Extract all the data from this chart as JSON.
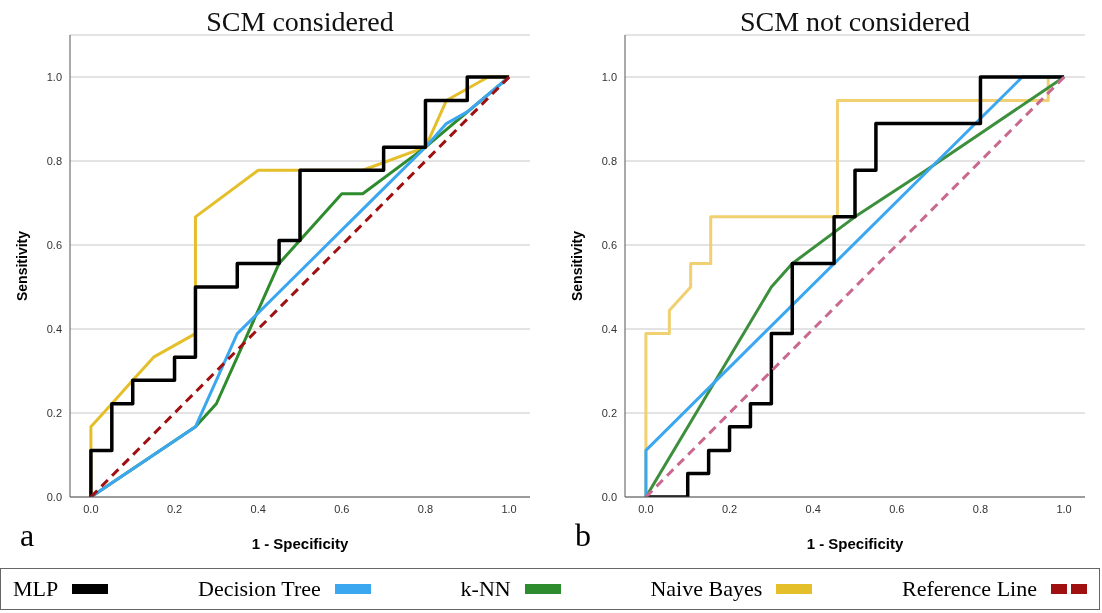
{
  "chart_data": [
    {
      "type": "line",
      "title": "SCM considered",
      "xlabel": "1 - Specificity",
      "ylabel": "Sensitivity",
      "annotations": [
        "a"
      ],
      "xlim": [
        -0.05,
        1.05
      ],
      "ylim": [
        0,
        1.1
      ],
      "xticks": [
        {
          "value": 0,
          "label": "0.0"
        },
        {
          "value": 0.2,
          "label": "0.2"
        },
        {
          "value": 0.4,
          "label": "0.4"
        },
        {
          "value": 0.6,
          "label": "0.6"
        },
        {
          "value": 0.8,
          "label": "0.8"
        },
        {
          "value": 1,
          "label": "1.0"
        }
      ],
      "yticks": [
        {
          "value": 0,
          "label": "0.0"
        },
        {
          "value": 0.2,
          "label": "0.2"
        },
        {
          "value": 0.4,
          "label": "0.4"
        },
        {
          "value": 0.6,
          "label": "0.6"
        },
        {
          "value": 0.8,
          "label": "0.8"
        },
        {
          "value": 1,
          "label": "1.0"
        }
      ],
      "grid": "y",
      "marker": "none",
      "legend": "bottom",
      "series": [
        {
          "name": "MLP",
          "color": "#000000",
          "x": [
            0,
            0,
            0.05,
            0.05,
            0.1,
            0.1,
            0.2,
            0.2,
            0.25,
            0.25,
            0.35,
            0.35,
            0.45,
            0.45,
            0.5,
            0.5,
            0.7,
            0.7,
            0.8,
            0.8,
            0.9,
            0.9,
            1
          ],
          "values": [
            0,
            0.111,
            0.111,
            0.222,
            0.222,
            0.278,
            0.278,
            0.333,
            0.333,
            0.5,
            0.5,
            0.556,
            0.556,
            0.611,
            0.611,
            0.778,
            0.778,
            0.833,
            0.833,
            0.944,
            0.944,
            1,
            1
          ]
        },
        {
          "name": "Decision Tree",
          "color": "#3aa7f0",
          "x": [
            0,
            0.25,
            0.35,
            0.8,
            0.85,
            0.9,
            1
          ],
          "values": [
            0,
            0.167,
            0.389,
            0.833,
            0.889,
            0.917,
            1
          ]
        },
        {
          "name": "k-NN",
          "color": "#2e8b2e",
          "x": [
            0,
            0.25,
            0.3,
            0.35,
            0.45,
            0.6,
            0.65,
            0.8,
            1
          ],
          "values": [
            0,
            0.167,
            0.222,
            0.333,
            0.556,
            0.722,
            0.722,
            0.833,
            1
          ]
        },
        {
          "name": "Naive Bayes",
          "color": "#e5bf2a",
          "x": [
            0,
            0,
            0.05,
            0.1,
            0.15,
            0.25,
            0.25,
            0.4,
            0.65,
            0.8,
            0.85,
            0.95,
            1
          ],
          "values": [
            0,
            0.167,
            0.222,
            0.278,
            0.333,
            0.389,
            0.667,
            0.778,
            0.778,
            0.833,
            0.944,
            1,
            1
          ]
        },
        {
          "name": "Reference Line",
          "color": "#a01010",
          "line_style": "dashed",
          "x": [
            0,
            1
          ],
          "values": [
            0,
            1
          ]
        }
      ]
    },
    {
      "type": "line",
      "title": "SCM not considered",
      "xlabel": "1 - Specificity",
      "ylabel": "Sensitivity",
      "annotations": [
        "b"
      ],
      "xlim": [
        -0.05,
        1.05
      ],
      "ylim": [
        0,
        1.1
      ],
      "xticks": [
        {
          "value": 0,
          "label": "0.0"
        },
        {
          "value": 0.2,
          "label": "0.2"
        },
        {
          "value": 0.4,
          "label": "0.4"
        },
        {
          "value": 0.6,
          "label": "0.6"
        },
        {
          "value": 0.8,
          "label": "0.8"
        },
        {
          "value": 1,
          "label": "1.0"
        }
      ],
      "yticks": [
        {
          "value": 0,
          "label": "0.0"
        },
        {
          "value": 0.2,
          "label": "0.2"
        },
        {
          "value": 0.4,
          "label": "0.4"
        },
        {
          "value": 0.6,
          "label": "0.6"
        },
        {
          "value": 0.8,
          "label": "0.8"
        },
        {
          "value": 1,
          "label": "1.0"
        }
      ],
      "grid": "y",
      "marker": "none",
      "series": [
        {
          "color": "#000000",
          "x": [
            0,
            0.1,
            0.1,
            0.15,
            0.15,
            0.2,
            0.2,
            0.25,
            0.25,
            0.3,
            0.3,
            0.35,
            0.35,
            0.45,
            0.45,
            0.5,
            0.5,
            0.55,
            0.55,
            0.8,
            0.8,
            1
          ],
          "values": [
            0,
            0,
            0.056,
            0.056,
            0.111,
            0.111,
            0.167,
            0.167,
            0.222,
            0.222,
            0.389,
            0.389,
            0.556,
            0.556,
            0.667,
            0.667,
            0.778,
            0.778,
            0.889,
            0.889,
            1,
            1
          ]
        },
        {
          "color": "#3aa7f0",
          "x": [
            0,
            0,
            0.9,
            1
          ],
          "values": [
            0,
            0.111,
            1,
            1
          ]
        },
        {
          "color": "#3c8f3c",
          "x": [
            0,
            0.3,
            0.35,
            0.5,
            0.67,
            1
          ],
          "values": [
            0,
            0.5,
            0.556,
            0.667,
            0.778,
            1
          ]
        },
        {
          "color": "#f0d070",
          "x": [
            0,
            0,
            0.056,
            0.056,
            0.107,
            0.107,
            0.155,
            0.155,
            0.458,
            0.458,
            0.962,
            0.962,
            1
          ],
          "values": [
            0,
            0.389,
            0.389,
            0.444,
            0.5,
            0.556,
            0.556,
            0.667,
            0.667,
            0.944,
            0.944,
            1,
            1
          ]
        },
        {
          "color": "#c9698f",
          "line_style": "dashed",
          "x": [
            0,
            1
          ],
          "values": [
            0,
            1
          ]
        }
      ]
    }
  ]
}
